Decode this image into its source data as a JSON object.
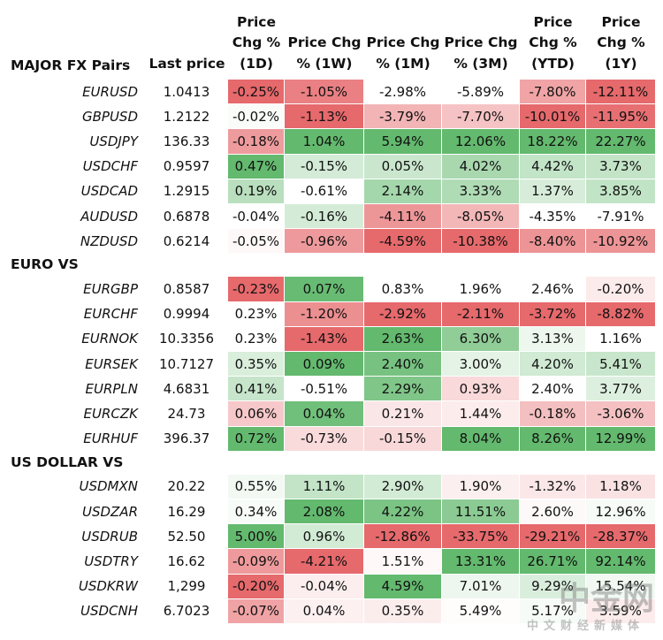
{
  "header": {
    "columns": [
      [
        "Last price"
      ],
      [
        "Price",
        "Chg %",
        "(1D)"
      ],
      [
        "Price Chg",
        "% (1W)"
      ],
      [
        "Price Chg",
        "% (1M)"
      ],
      [
        "Price Chg",
        "% (3M)"
      ],
      [
        "Price",
        "Chg %",
        "(YTD)"
      ],
      [
        "Price",
        "Chg %",
        "(1Y)"
      ]
    ]
  },
  "sections": [
    {
      "title": "MAJOR FX Pairs",
      "rows": [
        {
          "pair": "EURUSD",
          "last": "1.0413",
          "changes": [
            "-0.25%",
            "-1.05%",
            "-2.98%",
            "-5.89%",
            "-7.80%",
            "-12.11%"
          ]
        },
        {
          "pair": "GBPUSD",
          "last": "1.2122",
          "changes": [
            "-0.02%",
            "-1.13%",
            "-3.79%",
            "-7.70%",
            "-10.01%",
            "-11.95%"
          ]
        },
        {
          "pair": "USDJPY",
          "last": "136.33",
          "changes": [
            "-0.18%",
            "1.04%",
            "5.94%",
            "12.06%",
            "18.22%",
            "22.27%"
          ]
        },
        {
          "pair": "USDCHF",
          "last": "0.9597",
          "changes": [
            "0.47%",
            "-0.15%",
            "0.05%",
            "4.02%",
            "4.42%",
            "3.73%"
          ]
        },
        {
          "pair": "USDCAD",
          "last": "1.2915",
          "changes": [
            "0.19%",
            "-0.61%",
            "2.14%",
            "3.33%",
            "1.37%",
            "3.85%"
          ]
        },
        {
          "pair": "AUDUSD",
          "last": "0.6878",
          "changes": [
            "-0.04%",
            "-0.16%",
            "-4.11%",
            "-8.05%",
            "-4.35%",
            "-7.91%"
          ]
        },
        {
          "pair": "NZDUSD",
          "last": "0.6214",
          "changes": [
            "-0.05%",
            "-0.96%",
            "-4.59%",
            "-10.38%",
            "-8.40%",
            "-10.92%"
          ]
        }
      ]
    },
    {
      "title": "EURO VS",
      "rows": [
        {
          "pair": "EURGBP",
          "last": "0.8587",
          "changes": [
            "-0.23%",
            "0.07%",
            "0.83%",
            "1.96%",
            "2.46%",
            "-0.20%"
          ]
        },
        {
          "pair": "EURCHF",
          "last": "0.9994",
          "changes": [
            "0.23%",
            "-1.20%",
            "-2.92%",
            "-2.11%",
            "-3.72%",
            "-8.82%"
          ]
        },
        {
          "pair": "EURNOK",
          "last": "10.3356",
          "changes": [
            "0.23%",
            "-1.43%",
            "2.63%",
            "6.30%",
            "3.13%",
            "1.16%"
          ]
        },
        {
          "pair": "EURSEK",
          "last": "10.7127",
          "changes": [
            "0.35%",
            "0.09%",
            "2.40%",
            "3.00%",
            "4.20%",
            "5.41%"
          ]
        },
        {
          "pair": "EURPLN",
          "last": "4.6831",
          "changes": [
            "0.41%",
            "-0.51%",
            "2.29%",
            "0.93%",
            "2.40%",
            "3.77%"
          ]
        },
        {
          "pair": "EURCZK",
          "last": "24.73",
          "changes": [
            "0.06%",
            "0.04%",
            "0.21%",
            "1.44%",
            "-0.18%",
            "-3.06%"
          ]
        },
        {
          "pair": "EURHUF",
          "last": "396.37",
          "changes": [
            "0.72%",
            "-0.73%",
            "-0.15%",
            "8.04%",
            "8.26%",
            "12.99%"
          ]
        }
      ]
    },
    {
      "title": "US DOLLAR VS",
      "rows": [
        {
          "pair": "USDMXN",
          "last": "20.22",
          "changes": [
            "0.55%",
            "1.11%",
            "2.90%",
            "1.90%",
            "-1.32%",
            "1.18%"
          ]
        },
        {
          "pair": "USDZAR",
          "last": "16.29",
          "changes": [
            "0.34%",
            "2.08%",
            "4.22%",
            "11.51%",
            "2.60%",
            "12.96%"
          ]
        },
        {
          "pair": "USDRUB",
          "last": "52.50",
          "changes": [
            "5.00%",
            "0.96%",
            "-12.86%",
            "-33.75%",
            "-29.21%",
            "-28.37%"
          ]
        },
        {
          "pair": "USDTRY",
          "last": "16.62",
          "changes": [
            "-0.09%",
            "-4.21%",
            "1.51%",
            "13.31%",
            "26.71%",
            "92.14%"
          ]
        },
        {
          "pair": "USDKRW",
          "last": "1,299",
          "changes": [
            "-0.20%",
            "-0.04%",
            "4.59%",
            "7.01%",
            "9.29%",
            "15.54%"
          ]
        },
        {
          "pair": "USDCNH",
          "last": "6.7023",
          "changes": [
            "-0.07%",
            "0.04%",
            "0.35%",
            "5.49%",
            "5.17%",
            "3.59%"
          ]
        }
      ]
    }
  ],
  "watermark": {
    "logo": "中金网",
    "tagline": "中文财经新媒体"
  }
}
